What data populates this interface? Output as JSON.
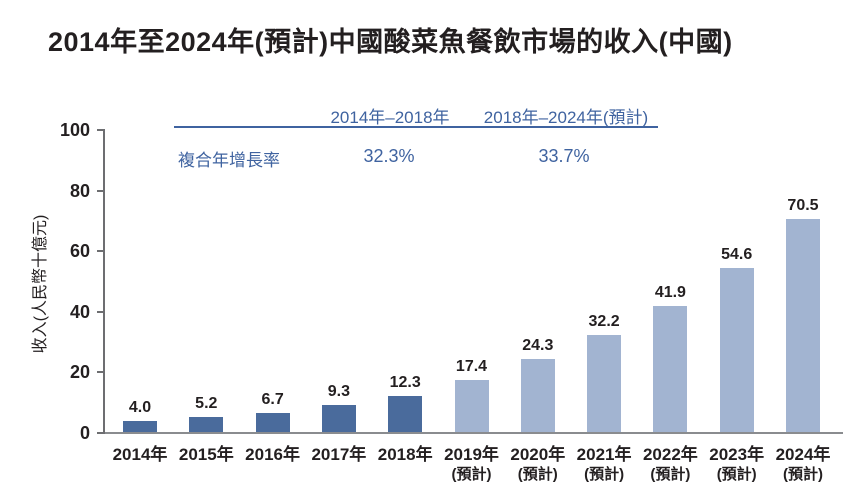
{
  "title": "2014年至2024年(預計)中國酸菜魚餐飲市場的收入(中國)",
  "y_axis_label": "收入(人民幣十億元)",
  "cagr": {
    "row_label": "複合年增長率",
    "periods": [
      {
        "label": "2014年–2018年",
        "value": "32.3%"
      },
      {
        "label": "2018年–2024年(預計)",
        "value": "33.7%"
      }
    ]
  },
  "colors": {
    "actual_bar": "#4a6b9c",
    "forecast_bar": "#a2b4d1",
    "accent_blue": "#3f63a0",
    "axis_line": "#6d6e71",
    "baseline": "#8a8c8f",
    "label_text": "#231f20"
  },
  "chart_data": {
    "type": "bar",
    "title": "2014年至2024年(預計)中國酸菜魚餐飲市場的收入(中國)",
    "ylabel": "收入(人民幣十億元)",
    "ylim": [
      0,
      100
    ],
    "yticks": [
      0,
      20,
      40,
      60,
      80,
      100
    ],
    "grid": false,
    "legend": "none",
    "categories": [
      "2014年",
      "2015年",
      "2016年",
      "2017年",
      "2018年",
      "2019年",
      "2020年",
      "2021年",
      "2022年",
      "2023年",
      "2024年"
    ],
    "sub_labels": [
      "",
      "",
      "",
      "",
      "",
      "(預計)",
      "(預計)",
      "(預計)",
      "(預計)",
      "(預計)",
      "(預計)"
    ],
    "values": [
      4.0,
      5.2,
      6.7,
      9.3,
      12.3,
      17.4,
      24.3,
      32.2,
      41.9,
      54.6,
      70.5
    ],
    "actual_count": 5,
    "bar_colors": {
      "actual": "#4a6b9c",
      "forecast": "#a2b4d1"
    },
    "annotations": {
      "cagr_label": "複合年增長率",
      "cagr_2014_2018": "32.3%",
      "cagr_2018_2024": "33.7%"
    }
  }
}
